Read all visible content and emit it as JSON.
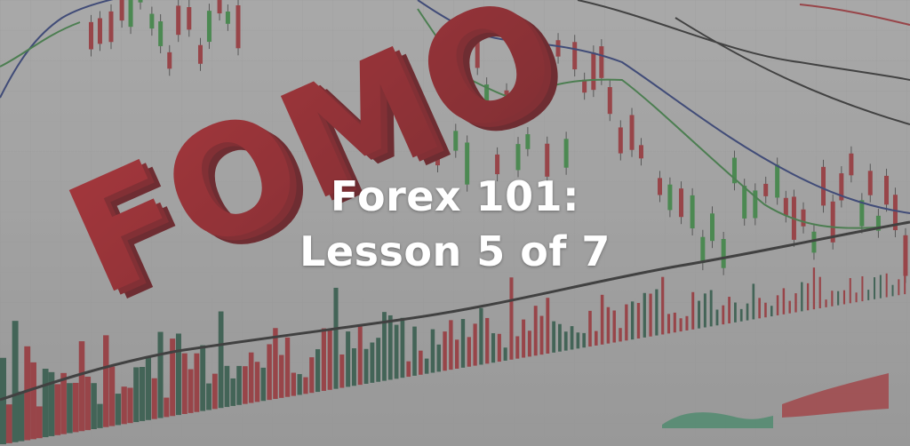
{
  "banner": {
    "word": "FOMO",
    "title_line1": "Forex 101:",
    "title_line2": "Lesson 5 of 7"
  },
  "colors": {
    "overlay": "#7a7a7a",
    "word_red": "#c8101a",
    "candle_green": "#3fae49",
    "candle_red": "#c8323a",
    "ma_blue": "#2b3f8e",
    "ma_green": "#3e9a48",
    "ma_dark": "#2d2d2d"
  }
}
